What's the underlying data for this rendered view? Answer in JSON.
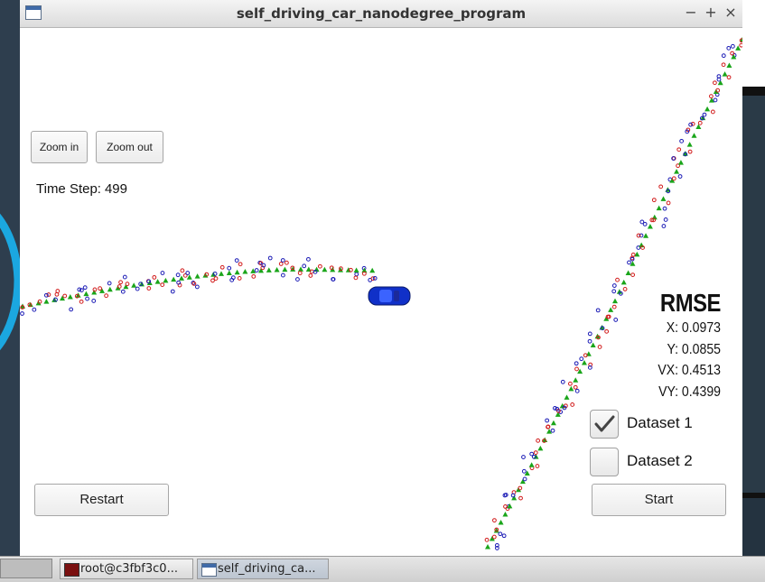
{
  "window": {
    "title": "self_driving_car_nanodegree_program",
    "controls": {
      "minimize": "−",
      "maximize": "+",
      "close": "×"
    }
  },
  "toolbar": {
    "zoom_in_label": "Zoom in",
    "zoom_out_label": "Zoom out"
  },
  "status": {
    "time_step_label": "Time Step:",
    "time_step_value": "499"
  },
  "rmse": {
    "title": "RMSE",
    "x": "X: 0.0973",
    "y": "Y: 0.0855",
    "vx": "VX: 0.4513",
    "vy": "VY: 0.4399"
  },
  "datasets": [
    {
      "label": "Dataset 1",
      "checked": true
    },
    {
      "label": "Dataset 2",
      "checked": false
    }
  ],
  "actions": {
    "restart_label": "Restart",
    "start_label": "Start"
  },
  "scene": {
    "colors": {
      "estimate": "#1aa51a",
      "lidar": "#d11a1a",
      "radar": "#1a1ab5",
      "car": "#1030c8"
    },
    "icons": {
      "estimate": "triangle-marker",
      "lidar": "circle-marker",
      "radar": "circle-marker",
      "car": "car-icon"
    }
  },
  "taskbar": {
    "tasks": [
      {
        "label": "root@c3fbf3c0...",
        "icon": "terminal-icon"
      },
      {
        "label": "self_driving_ca...",
        "icon": "window-icon"
      }
    ]
  }
}
